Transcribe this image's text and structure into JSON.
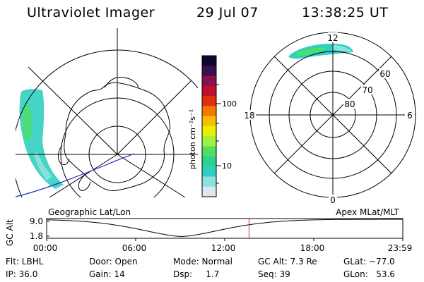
{
  "header": {
    "title": "Ultraviolet Imager",
    "date": "29 Jul 07",
    "time": "13:38:25 UT"
  },
  "colorbar": {
    "label": "photon cm⁻²s⁻¹",
    "ticks": [
      "100",
      "10"
    ],
    "colors": [
      "#0a0a30",
      "#3a1050",
      "#8a1050",
      "#c01030",
      "#e03010",
      "#f07a00",
      "#f5c000",
      "#e8f000",
      "#a0f040",
      "#50e060",
      "#30d090",
      "#30d0c0",
      "#90e0e0",
      "#dde7ef"
    ]
  },
  "polar_plot": {
    "mlt_labels": {
      "top": "12",
      "right": "6",
      "bottom": "0",
      "left": "18"
    },
    "lat_labels": [
      "60",
      "70",
      "80"
    ]
  },
  "timeline": {
    "left_title": "Geographic Lat/Lon",
    "right_title": "Apex MLat/MLT",
    "axis_label": "GC Alt",
    "y_ticks": [
      "9.0",
      "1.8"
    ],
    "x_ticks": [
      "00:00",
      "06:00",
      "12:00",
      "18:00",
      "23:59"
    ],
    "marker_color": "#e02020",
    "curve_color": "#000000"
  },
  "info": {
    "flt": "Flt: LBHL",
    "ip": "IP: 36.0",
    "door": "Door: Open",
    "gain": "Gain: 14",
    "mode": "Mode: Normal",
    "dsp": "Dsp:     1.7",
    "gcalt": "GC Alt: 7.3 Re",
    "seq": "Seq: 39",
    "glat": "GLat: −77.0",
    "glon": "GLon:   53.6"
  }
}
